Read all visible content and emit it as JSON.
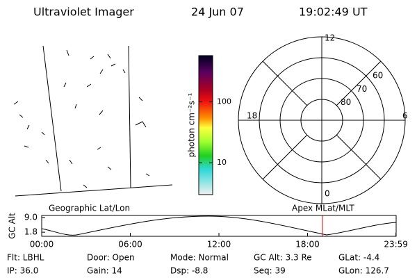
{
  "header": {
    "title": "Ultraviolet Imager",
    "date": "24 Jun 07",
    "time": "19:02:49 UT"
  },
  "map": {
    "label": "Geographic Lat/Lon"
  },
  "colorbar": {
    "label": "photon cm⁻²s⁻¹",
    "log": true,
    "range": [
      3,
      575
    ],
    "ticks": [
      10,
      100
    ]
  },
  "polar": {
    "label": "Apex MLat/MLT",
    "lat_range": [
      50,
      90
    ],
    "lat_ticks": [
      60,
      70,
      80
    ],
    "mlt_ticks": [
      12,
      6,
      0,
      18
    ]
  },
  "altitude": {
    "ylabel": "GC Alt",
    "ylim": [
      -0.2,
      10
    ],
    "yticks": [
      {
        "value": 9,
        "label": "9.0"
      },
      {
        "value": 1.8,
        "label": "1.8"
      }
    ],
    "xlim": [
      0,
      24
    ],
    "xticks": [
      {
        "value": 0,
        "label": "00:00"
      },
      {
        "value": 6,
        "label": "06:00"
      },
      {
        "value": 12,
        "label": "12:00"
      },
      {
        "value": 18,
        "label": "18:00"
      },
      {
        "value": 23.9833,
        "label": "23:59"
      }
    ]
  },
  "footer": {
    "rows": [
      [
        "Flt: LBHL",
        "Door: Open",
        "Mode: Normal",
        "GC Alt: 3.3 Re",
        "GLat: -4.4"
      ],
      [
        "IP: 36.0",
        "Gain: 14",
        "Dsp: -8.8",
        "Seq: 39",
        "GLon: 126.7"
      ]
    ]
  }
}
